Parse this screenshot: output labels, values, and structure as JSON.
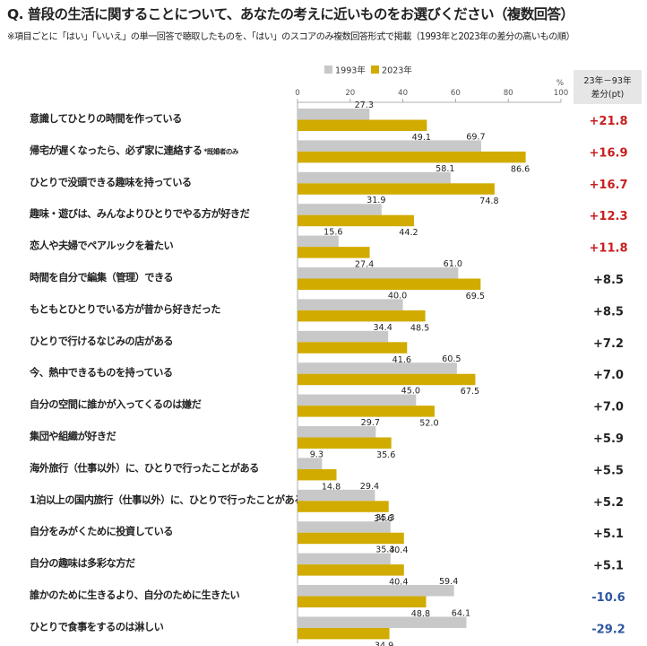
{
  "question": "Q. 普段の生活に関することについて、あなたの考えに近いものをお選びください（複数回答）",
  "note": "※項目ごとに「はい」「いいえ」の単一回答で聴取したものを、「はい」のスコアのみ複数回答形式で掲載（1993年と2023年の差分の高いもの順）",
  "colors": {
    "s1993": "#c8c8c8",
    "s2023": "#d1ab00",
    "positive_high": "#c81e1e",
    "positive": "#222222",
    "negative": "#2e55a0",
    "diff_header_bg": "#e6e6e6"
  },
  "diff_header": {
    "line1": "23年－93年",
    "line2": "差分(pt)"
  },
  "chart_data": {
    "type": "bar",
    "orientation": "horizontal",
    "xlim": [
      0,
      100
    ],
    "xticks": [
      "0",
      "20",
      "40",
      "60",
      "80",
      "100"
    ],
    "unit": "%",
    "legend_position": "top",
    "grid": false,
    "categories": [
      "意識してひとりの時間を作っている",
      "帰宅が遅くなったら、必ず家に連絡する",
      "ひとりで没頭できる趣味を持っている",
      "趣味・遊びは、みんなよりひとりでやる方が好きだ",
      "恋人や夫婦でペアルックを着たい",
      "時間を自分で編集（管理）できる",
      "もともとひとりでいる方が昔から好きだった",
      "ひとりで行けるなじみの店がある",
      "今、熱中できるものを持っている",
      "自分の空間に誰かが入ってくるのは嫌だ",
      "集団や組織が好きだ",
      "海外旅行（仕事以外）に、ひとりで行ったことがある",
      "1泊以上の国内旅行（仕事以外）に、ひとりで行ったことがある",
      "自分をみがくために投資している",
      "自分の趣味は多彩な方だ",
      "誰かのために生きるより、自分のために生きたい",
      "ひとりで食事をするのは淋しい"
    ],
    "category_notes": [
      "",
      "*既婚者のみ",
      "",
      "",
      "",
      "",
      "",
      "",
      "",
      "",
      "",
      "",
      "",
      "",
      "",
      "",
      ""
    ],
    "series": [
      {
        "name": "1993年",
        "values": [
          27.3,
          69.7,
          58.1,
          31.9,
          15.6,
          61.0,
          40.0,
          34.4,
          60.5,
          45.0,
          29.7,
          9.3,
          29.4,
          35.3,
          35.3,
          59.4,
          64.1
        ],
        "labels": [
          "27.3",
          "69.7",
          "58.1",
          "31.9",
          "15.6",
          "61.0",
          "40.0",
          "34.4",
          "60.5",
          "45.0",
          "29.7",
          "9.3",
          "29.4",
          "35.3",
          "35.3",
          "59.4",
          "64.1"
        ]
      },
      {
        "name": "2023年",
        "values": [
          49.1,
          86.6,
          74.8,
          44.2,
          27.4,
          69.5,
          48.5,
          41.6,
          67.5,
          52.0,
          35.6,
          14.8,
          34.6,
          40.4,
          40.4,
          48.8,
          34.9
        ],
        "labels": [
          "49.1",
          "86.6",
          "74.8",
          "44.2",
          "27.4",
          "69.5",
          "48.5",
          "41.6",
          "67.5",
          "52.0",
          "35.6",
          "14.8",
          "34.6",
          "40.4",
          "40.4",
          "48.8",
          "34.9"
        ]
      }
    ],
    "diffs": [
      "+21.8",
      "+16.9",
      "+16.7",
      "+12.3",
      "+11.8",
      "+8.5",
      "+8.5",
      "+7.2",
      "+7.0",
      "+7.0",
      "+5.9",
      "+5.5",
      "+5.2",
      "+5.1",
      "+5.1",
      "-10.6",
      "-29.2"
    ],
    "diff_values": [
      21.8,
      16.9,
      16.7,
      12.3,
      11.8,
      8.5,
      8.5,
      7.2,
      7.0,
      7.0,
      5.9,
      5.5,
      5.2,
      5.1,
      5.1,
      -10.6,
      -29.2
    ]
  }
}
